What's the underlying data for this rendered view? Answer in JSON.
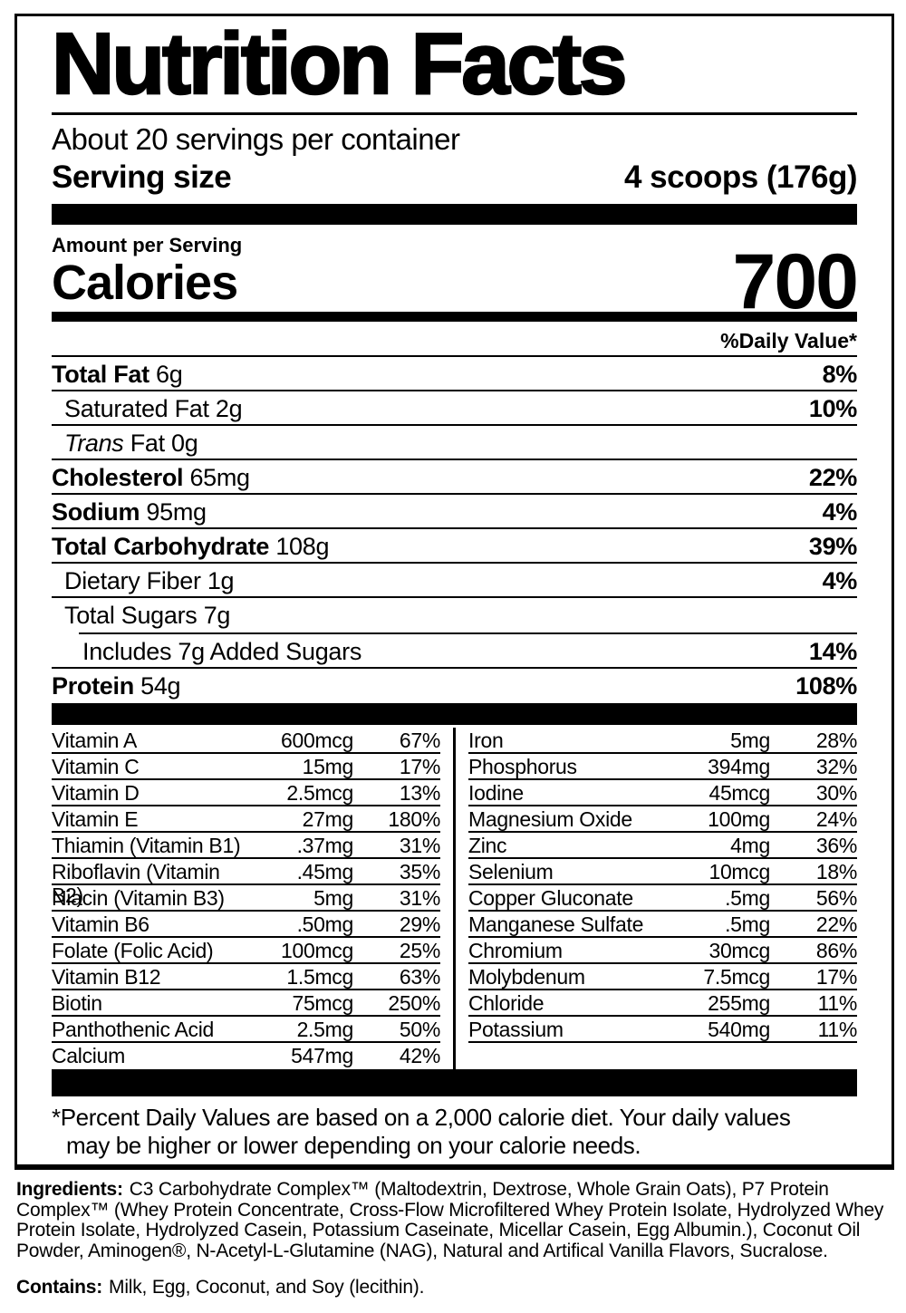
{
  "label": {
    "title": "Nutrition Facts",
    "servings_per_container": "About 20 servings per container",
    "serving_size_label": "Serving size",
    "serving_size_value": "4 scoops (176g)",
    "amount_per_serving": "Amount per Serving",
    "calories_label": "Calories",
    "calories_value": "700",
    "daily_value_header": "%Daily Value*"
  },
  "nutrients": [
    {
      "name": "Total Fat",
      "amount": "6g",
      "dv": "8%",
      "bold": true,
      "indent": 0,
      "sep_below": "full"
    },
    {
      "name": "Saturated Fat",
      "amount": "2g",
      "dv": "10%",
      "bold": false,
      "indent": 1,
      "sep_below": "full"
    },
    {
      "name_italic": "Trans",
      "name": "Fat",
      "amount": "0g",
      "dv": "",
      "bold": false,
      "indent": 1,
      "sep_below": "full"
    },
    {
      "name": "Cholesterol",
      "amount": "65mg",
      "dv": "22%",
      "bold": true,
      "indent": 0,
      "sep_below": "full"
    },
    {
      "name": "Sodium",
      "amount": "95mg",
      "dv": "4%",
      "bold": true,
      "indent": 0,
      "sep_below": "full"
    },
    {
      "name": "Total Carbohydrate",
      "amount": "108g",
      "dv": "39%",
      "bold": true,
      "indent": 0,
      "sep_below": "full"
    },
    {
      "name": "Dietary Fiber",
      "amount": "1g",
      "dv": "4%",
      "bold": false,
      "indent": 1,
      "sep_below": "full"
    },
    {
      "name": "Total Sugars",
      "amount": "7g",
      "dv": "",
      "bold": false,
      "indent": 1,
      "sep_below": "indent"
    },
    {
      "name": "Includes 7g Added Sugars",
      "amount": "",
      "dv": "14%",
      "bold": false,
      "indent": 2,
      "sep_below": "full"
    },
    {
      "name": "Protein",
      "amount": "54g",
      "dv": "108%",
      "bold": true,
      "indent": 0,
      "sep_below": "none"
    }
  ],
  "vitamins": {
    "left": [
      {
        "name": "Vitamin A",
        "amount": "600mcg",
        "dv": "67%"
      },
      {
        "name": "Vitamin C",
        "amount": "15mg",
        "dv": "17%"
      },
      {
        "name": "Vitamin D",
        "amount": "2.5mcg",
        "dv": "13%"
      },
      {
        "name": "Vitamin E",
        "amount": "27mg",
        "dv": "180%"
      },
      {
        "name": "Thiamin (Vitamin B1)",
        "amount": ".37mg",
        "dv": "31%"
      },
      {
        "name": "Riboflavin (Vitamin B2)",
        "amount": ".45mg",
        "dv": "35%"
      },
      {
        "name": "Niacin (Vitamin B3)",
        "amount": "5mg",
        "dv": "31%"
      },
      {
        "name": "Vitamin B6",
        "amount": ".50mg",
        "dv": "29%"
      },
      {
        "name": "Folate (Folic Acid)",
        "amount": "100mcg",
        "dv": "25%"
      },
      {
        "name": "Vitamin B12",
        "amount": "1.5mcg",
        "dv": "63%"
      },
      {
        "name": "Biotin",
        "amount": "75mcg",
        "dv": "250%"
      },
      {
        "name": "Panthothenic Acid",
        "amount": "2.5mg",
        "dv": "50%"
      },
      {
        "name": "Calcium",
        "amount": "547mg",
        "dv": "42%"
      }
    ],
    "right": [
      {
        "name": "Iron",
        "amount": "5mg",
        "dv": "28%"
      },
      {
        "name": "Phosphorus",
        "amount": "394mg",
        "dv": "32%"
      },
      {
        "name": "Iodine",
        "amount": "45mcg",
        "dv": "30%"
      },
      {
        "name": "Magnesium Oxide",
        "amount": "100mg",
        "dv": "24%"
      },
      {
        "name": "Zinc",
        "amount": "4mg",
        "dv": "36%"
      },
      {
        "name": "Selenium",
        "amount": "10mcg",
        "dv": "18%"
      },
      {
        "name": "Copper Gluconate",
        "amount": ".5mg",
        "dv": "56%"
      },
      {
        "name": "Manganese Sulfate",
        "amount": ".5mg",
        "dv": "22%"
      },
      {
        "name": "Chromium",
        "amount": "30mcg",
        "dv": "86%"
      },
      {
        "name": "Molybdenum",
        "amount": "7.5mcg",
        "dv": "17%"
      },
      {
        "name": "Chloride",
        "amount": "255mg",
        "dv": "11%"
      },
      {
        "name": "Potassium",
        "amount": "540mg",
        "dv": "11%"
      }
    ]
  },
  "footnote_lines": [
    "*Percent Daily Values are based on a 2,000 calorie diet. Your daily values",
    "may be higher or lower depending on your calorie needs."
  ],
  "ingredients": {
    "label": "Ingredients:",
    "text": "C3 Carbohydrate Complex™ (Maltodextrin, Dextrose, Whole Grain Oats), P7 Protein Complex™ (Whey Protein Concentrate, Cross-Flow Microfiltered Whey Protein Isolate, Hydrolyzed Whey Protein Isolate, Hydrolyzed Casein, Potassium Caseinate, Micellar Casein, Egg Albumin.), Coconut Oil Powder, Aminogen®, N-Acetyl-L-Glutamine (NAG), Natural and Artifical Vanilla Flavors, Sucralose."
  },
  "contains": {
    "label": "Contains:",
    "text": "Milk, Egg, Coconut, and Soy (lecithin)."
  },
  "colors": {
    "ink": "#000000",
    "paper": "#ffffff"
  }
}
